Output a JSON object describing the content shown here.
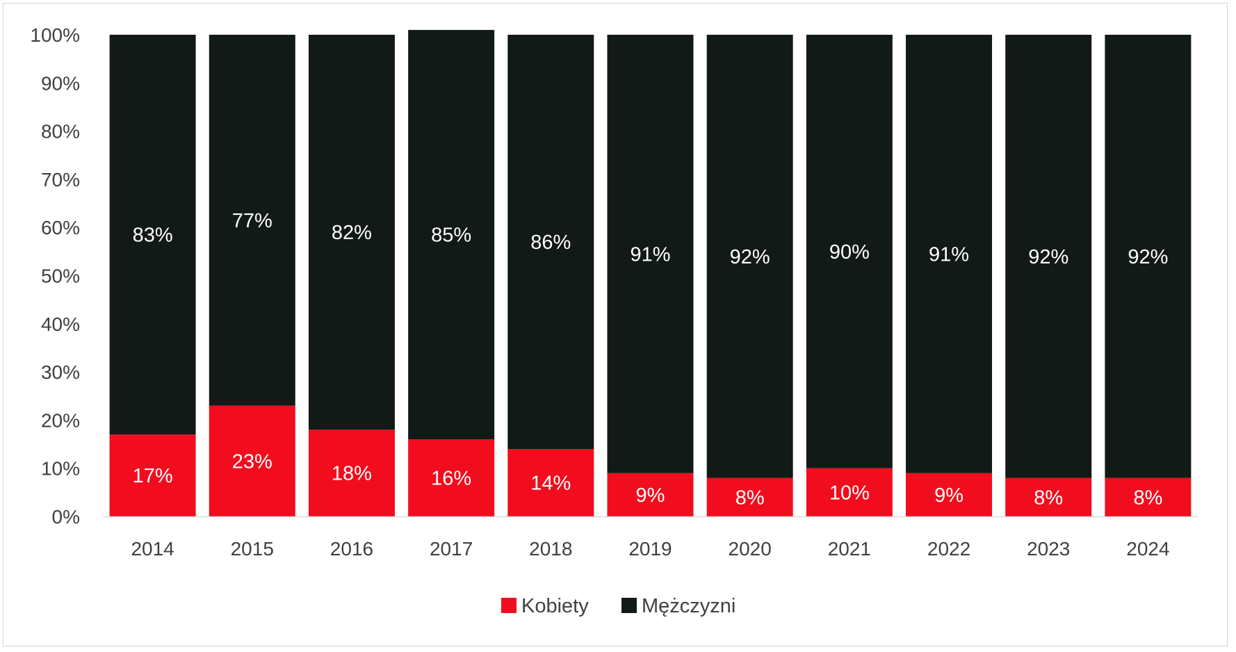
{
  "colors": {
    "Kobiety": "#f20d1e",
    "Mężczyzni": "#121a17",
    "axis_text": "#404040",
    "axis_line": "#d9d9d9"
  },
  "chart_data": {
    "type": "bar",
    "stacked": true,
    "categories": [
      "2014",
      "2015",
      "2016",
      "2017",
      "2018",
      "2019",
      "2020",
      "2021",
      "2022",
      "2023",
      "2024"
    ],
    "series": [
      {
        "name": "Kobiety",
        "values": [
          17,
          23,
          18,
          16,
          14,
          9,
          8,
          10,
          9,
          8,
          8
        ],
        "labels": [
          "17%",
          "23%",
          "18%",
          "16%",
          "14%",
          "9%",
          "8%",
          "10%",
          "9%",
          "8%",
          "8%"
        ]
      },
      {
        "name": "Mężczyzni",
        "values": [
          83,
          77,
          82,
          85,
          86,
          91,
          92,
          90,
          91,
          92,
          92
        ],
        "labels": [
          "83%",
          "77%",
          "82%",
          "85%",
          "86%",
          "91%",
          "92%",
          "90%",
          "91%",
          "92%",
          "92%"
        ]
      }
    ],
    "yticks": [
      "0%",
      "10%",
      "20%",
      "30%",
      "40%",
      "50%",
      "60%",
      "70%",
      "80%",
      "90%",
      "100%"
    ],
    "ylim": [
      0,
      100
    ],
    "grid": false,
    "legend": "bottom-center",
    "title": "",
    "xlabel": "",
    "ylabel": ""
  }
}
